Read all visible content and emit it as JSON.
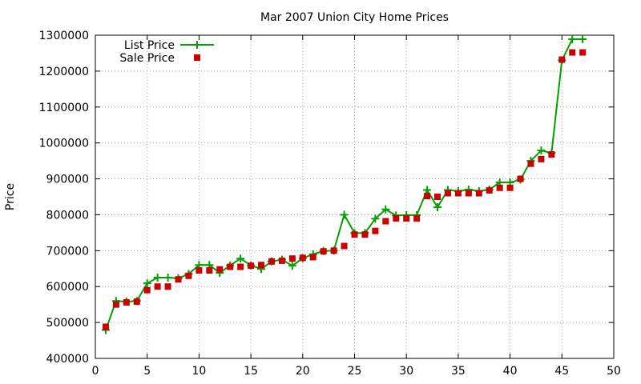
{
  "chart_data": {
    "type": "line",
    "title": "Mar 2007 Union City Home Prices",
    "xlabel": "",
    "ylabel": "Price",
    "xlim": [
      0,
      50
    ],
    "ylim": [
      400000,
      1300000
    ],
    "x_ticks": [
      0,
      5,
      10,
      15,
      20,
      25,
      30,
      35,
      40,
      45,
      50
    ],
    "y_ticks": [
      400000,
      500000,
      600000,
      700000,
      800000,
      900000,
      1000000,
      1100000,
      1200000,
      1300000
    ],
    "grid": true,
    "legend_position": "top-left",
    "series": [
      {
        "name": "List Price",
        "style": "line-with-plus-markers",
        "color": "#00a000",
        "x": [
          1,
          2,
          3,
          4,
          5,
          6,
          7,
          8,
          9,
          10,
          11,
          12,
          13,
          14,
          15,
          16,
          17,
          18,
          19,
          20,
          21,
          22,
          23,
          24,
          25,
          26,
          27,
          28,
          29,
          30,
          31,
          32,
          33,
          34,
          35,
          36,
          37,
          38,
          39,
          40,
          41,
          42,
          43,
          44,
          45,
          46,
          47
        ],
        "values": [
          479000,
          560000,
          558000,
          560000,
          609000,
          625000,
          625000,
          623000,
          635000,
          660000,
          660000,
          638000,
          659000,
          678000,
          659000,
          649000,
          670000,
          675000,
          658000,
          679000,
          690000,
          699000,
          700000,
          800000,
          749000,
          749000,
          789000,
          815000,
          798000,
          799000,
          799000,
          869000,
          821000,
          869000,
          866000,
          870000,
          866000,
          870000,
          890000,
          890000,
          898000,
          950000,
          979000,
          972000,
          1230000,
          1289000,
          1289000
        ]
      },
      {
        "name": "Sale Price",
        "style": "square-markers",
        "color": "#cc0000",
        "x": [
          1,
          2,
          3,
          4,
          5,
          6,
          7,
          8,
          9,
          10,
          11,
          12,
          13,
          14,
          15,
          16,
          17,
          18,
          19,
          20,
          21,
          22,
          23,
          24,
          25,
          26,
          27,
          28,
          29,
          30,
          31,
          32,
          33,
          34,
          35,
          36,
          37,
          38,
          39,
          40,
          41,
          42,
          43,
          44,
          45,
          46,
          47
        ],
        "values": [
          488000,
          550000,
          556000,
          558000,
          590000,
          600000,
          600000,
          620000,
          630000,
          645000,
          645000,
          648000,
          655000,
          655000,
          658000,
          660000,
          670000,
          672000,
          678000,
          680000,
          682000,
          698000,
          700000,
          713000,
          745000,
          745000,
          755000,
          782000,
          790000,
          790000,
          790000,
          852000,
          850000,
          860000,
          860000,
          860000,
          860000,
          868000,
          875000,
          875000,
          900000,
          942000,
          955000,
          968000,
          1232000,
          1252000,
          1252000
        ]
      }
    ]
  }
}
